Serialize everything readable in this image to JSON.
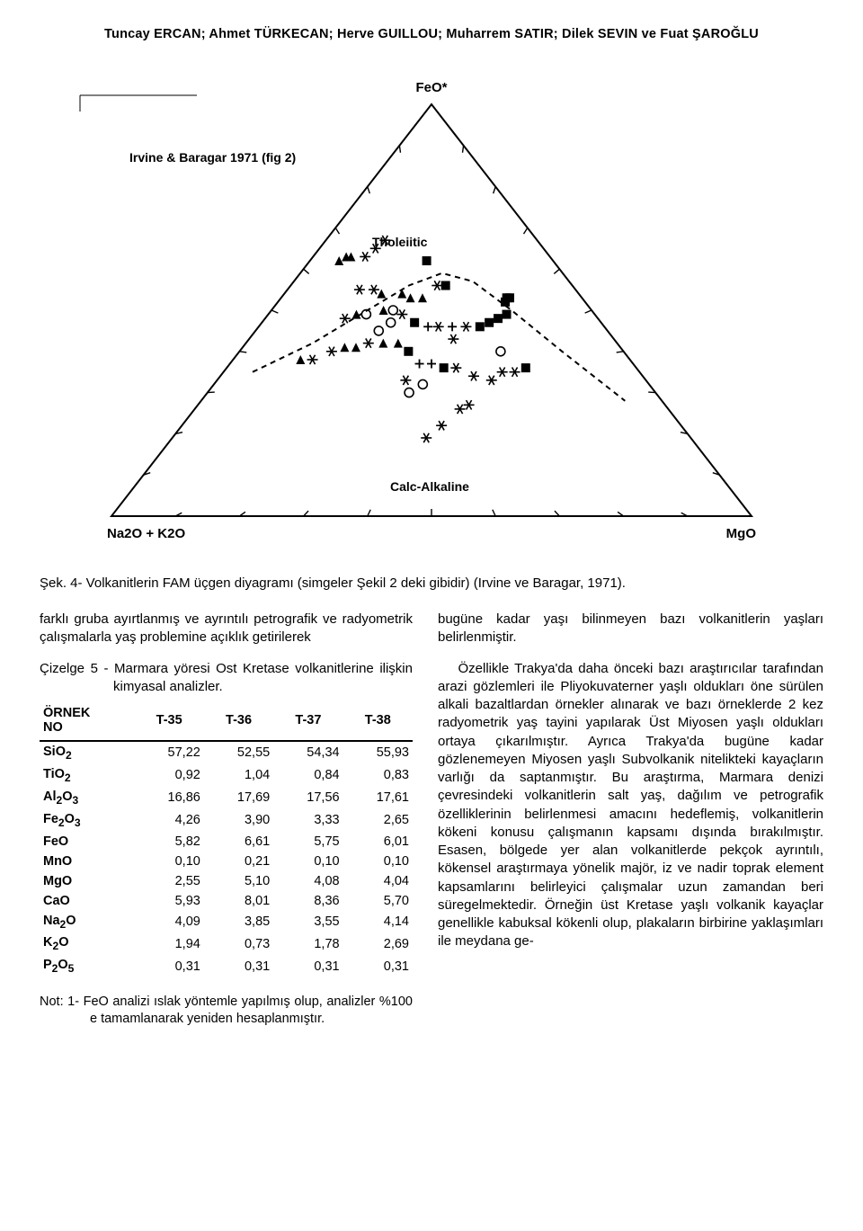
{
  "authors": "Tuncay ERCAN; Ahmet TÜRKECAN; Herve GUILLOU; Muharrem SATIR; Dilek SEVIN ve Fuat ŞAROĞLU",
  "figure": {
    "type": "ternary-diagram",
    "vertices": {
      "top": "FeO*",
      "left": "Na2O + K2O",
      "right": "MgO"
    },
    "reference_label": "Irvine & Baragar 1971 (fig 2)",
    "field_labels": {
      "upper": "Tholeiitic",
      "lower": "Calc-Alkaline"
    },
    "background_color": "#ffffff",
    "line_color": "#000000",
    "caption": "Şek. 4-  Volkanitlerin FAM üçgen diyagramı (simgeler Şekil 2 deki gibidir) (Irvine ve Baragar, 1971).",
    "points": [
      [
        0.49,
        0.19,
        "ast"
      ],
      [
        0.52,
        0.22,
        "ast"
      ],
      [
        0.56,
        0.26,
        "ast"
      ],
      [
        0.58,
        0.27,
        "ast"
      ],
      [
        0.45,
        0.3,
        "circ"
      ],
      [
        0.48,
        0.32,
        "circ"
      ],
      [
        0.44,
        0.33,
        "ast"
      ],
      [
        0.17,
        0.38,
        "tri"
      ],
      [
        0.2,
        0.38,
        "ast"
      ],
      [
        0.24,
        0.4,
        "ast"
      ],
      [
        0.27,
        0.41,
        "tri"
      ],
      [
        0.3,
        0.41,
        "tri"
      ],
      [
        0.33,
        0.42,
        "ast"
      ],
      [
        0.37,
        0.42,
        "tri"
      ],
      [
        0.35,
        0.45,
        "circ"
      ],
      [
        0.38,
        0.47,
        "circ"
      ],
      [
        0.41,
        0.42,
        "tri"
      ],
      [
        0.44,
        0.4,
        "sq"
      ],
      [
        0.47,
        0.37,
        "plus"
      ],
      [
        0.5,
        0.37,
        "plus"
      ],
      [
        0.53,
        0.36,
        "sq"
      ],
      [
        0.56,
        0.36,
        "ast"
      ],
      [
        0.6,
        0.34,
        "ast"
      ],
      [
        0.64,
        0.33,
        "ast"
      ],
      [
        0.67,
        0.35,
        "ast"
      ],
      [
        0.7,
        0.35,
        "ast"
      ],
      [
        0.73,
        0.36,
        "sq"
      ],
      [
        0.68,
        0.4,
        "circ"
      ],
      [
        0.56,
        0.43,
        "ast"
      ],
      [
        0.24,
        0.48,
        "ast"
      ],
      [
        0.27,
        0.49,
        "tri"
      ],
      [
        0.3,
        0.49,
        "circ"
      ],
      [
        0.35,
        0.5,
        "tri"
      ],
      [
        0.38,
        0.5,
        "circ"
      ],
      [
        0.41,
        0.49,
        "ast"
      ],
      [
        0.45,
        0.47,
        "sq"
      ],
      [
        0.49,
        0.46,
        "plus"
      ],
      [
        0.52,
        0.46,
        "ast"
      ],
      [
        0.56,
        0.46,
        "plus"
      ],
      [
        0.6,
        0.46,
        "ast"
      ],
      [
        0.64,
        0.46,
        "sq"
      ],
      [
        0.67,
        0.47,
        "sq"
      ],
      [
        0.7,
        0.48,
        "sq"
      ],
      [
        0.73,
        0.49,
        "sq"
      ],
      [
        0.74,
        0.52,
        "sq"
      ],
      [
        0.75,
        0.53,
        "sq"
      ],
      [
        0.76,
        0.53,
        "sq"
      ],
      [
        0.25,
        0.55,
        "ast"
      ],
      [
        0.3,
        0.55,
        "ast"
      ],
      [
        0.33,
        0.54,
        "tri"
      ],
      [
        0.4,
        0.54,
        "tri"
      ],
      [
        0.43,
        0.53,
        "tri"
      ],
      [
        0.47,
        0.53,
        "tri"
      ],
      [
        0.55,
        0.56,
        "sq"
      ],
      [
        0.52,
        0.56,
        "ast"
      ],
      [
        0.12,
        0.62,
        "tri"
      ],
      [
        0.14,
        0.63,
        "tri"
      ],
      [
        0.16,
        0.63,
        "tri"
      ],
      [
        0.22,
        0.63,
        "ast"
      ],
      [
        0.25,
        0.65,
        "ast"
      ],
      [
        0.28,
        0.67,
        "ast"
      ],
      [
        0.48,
        0.62,
        "sq"
      ]
    ],
    "divider_dash": "6,5"
  },
  "left_para": "farklı gruba ayırtlanmış ve ayrıntılı petrografik ve radyometrik çalışmalarla yaş problemine açıklık getirilerek",
  "table_title": "Çizelge 5 - Marmara yöresi Ost Kretase volkanitlerine ilişkin kimyasal analizler.",
  "table": {
    "header_label1": "ÖRNEK",
    "header_label2": "NO",
    "columns": [
      "T-35",
      "T-36",
      "T-37",
      "T-38"
    ],
    "rows": [
      {
        "label": "SiO₂",
        "vals": [
          "57,22",
          "52,55",
          "54,34",
          "55,93"
        ]
      },
      {
        "label": "TiO₂",
        "vals": [
          "0,92",
          "1,04",
          "0,84",
          "0,83"
        ]
      },
      {
        "label": "Al₂O₃",
        "vals": [
          "16,86",
          "17,69",
          "17,56",
          "17,61"
        ]
      },
      {
        "label": "Fe₂O₃",
        "vals": [
          "4,26",
          "3,90",
          "3,33",
          "2,65"
        ]
      },
      {
        "label": "FeO",
        "vals": [
          "5,82",
          "6,61",
          "5,75",
          "6,01"
        ]
      },
      {
        "label": "MnO",
        "vals": [
          "0,10",
          "0,21",
          "0,10",
          "0,10"
        ]
      },
      {
        "label": "MgO",
        "vals": [
          "2,55",
          "5,10",
          "4,08",
          "4,04"
        ]
      },
      {
        "label": "CaO",
        "vals": [
          "5,93",
          "8,01",
          "8,36",
          "5,70"
        ]
      },
      {
        "label": "Na₂O",
        "vals": [
          "4,09",
          "3,85",
          "3,55",
          "4,14"
        ]
      },
      {
        "label": "K₂O",
        "vals": [
          "1,94",
          "0,73",
          "1,78",
          "2,69"
        ]
      },
      {
        "label": "P₂O₅",
        "vals": [
          "0,31",
          "0,31",
          "0,31",
          "0,31"
        ]
      }
    ]
  },
  "note": "Not: 1-  FeO analizi ıslak yöntemle yapılmış olup, analizler %100 e tamamlanarak yeniden hesaplanmıştır.",
  "right_para1": "bugüne kadar yaşı bilinmeyen bazı volkanitlerin yaşları belirlenmiştir.",
  "right_para2": "Özellikle Trakya'da daha önceki bazı araştırıcılar tarafından arazi gözlemleri ile Pliyokuvaterner yaşlı oldukları öne sürülen alkali bazaltlardan örnekler alınarak ve bazı örneklerde 2 kez radyometrik yaş tayini yapılarak Üst Miyosen yaşlı oldukları ortaya çıkarılmıştır. Ayrıca Trakya'da bugüne kadar gözlenemeyen Miyosen yaşlı Subvolkanik nitelikteki kayaçların varlığı da saptanmıştır. Bu araştırma, Marmara denizi çevresindeki volkanitlerin salt yaş, dağılım ve petrografik özelliklerinin belirlenmesi amacını hedeflemiş, volkanitlerin kökeni konusu çalışmanın kapsamı dışında bırakılmıştır. Esasen, bölgede yer alan volkanitlerde pekçok ayrıntılı, kökensel araştırmaya yönelik majör, iz ve nadir toprak element kapsamlarını belirleyici çalışmalar uzun zamandan beri süregelmektedir. Örneğin üst Kretase yaşlı volkanik kayaçlar genellikle kabuksal kökenli olup, plakaların birbirine yaklaşımları ile meydana ge-"
}
